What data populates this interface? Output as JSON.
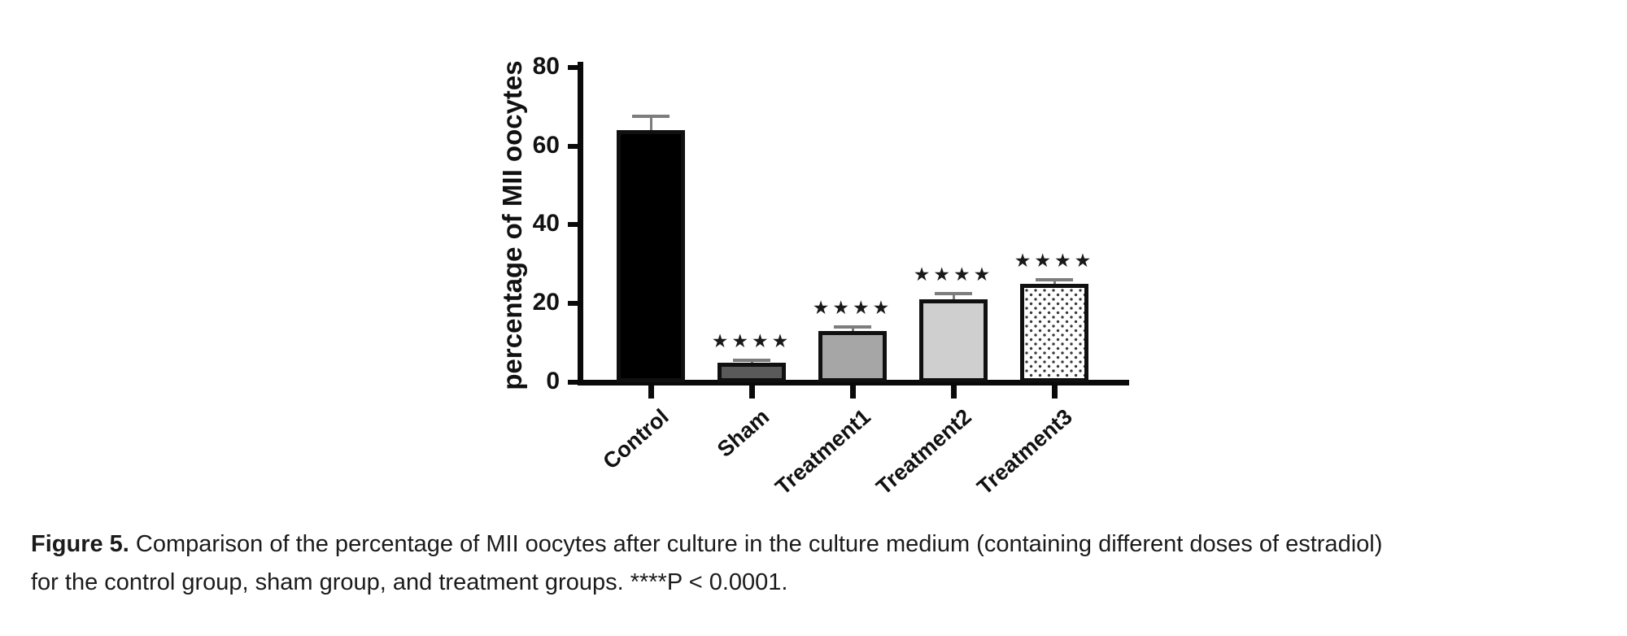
{
  "chart_data": {
    "type": "bar",
    "title": "",
    "xlabel": "",
    "ylabel": "percentage of MII oocytes",
    "ylim": [
      0,
      80
    ],
    "yticks": [
      0,
      20,
      40,
      60,
      80
    ],
    "categories": [
      "Control",
      "Sham",
      "Treatment1",
      "Treatment2",
      "Treatment3"
    ],
    "values": [
      64,
      5,
      13,
      21,
      25
    ],
    "errors": [
      4,
      1,
      1.5,
      2,
      1.5
    ],
    "significance": [
      "",
      "****",
      "****",
      "****",
      "****"
    ],
    "bar_colors": [
      "#000000",
      "#5a5a5a",
      "#a6a6a6",
      "#cfcfcf",
      "dotted-white"
    ],
    "bar_border_color": "#101010",
    "error_bar_color": "#7d7d7d",
    "grid": false,
    "legend": "none"
  },
  "caption": {
    "label": "Figure 5.",
    "line1": "Comparison of the percentage of MII oocytes after culture in the culture medium (containing different doses of estradiol)",
    "line2": "for the control group, sham group, and treatment groups. ****P < 0.0001."
  }
}
